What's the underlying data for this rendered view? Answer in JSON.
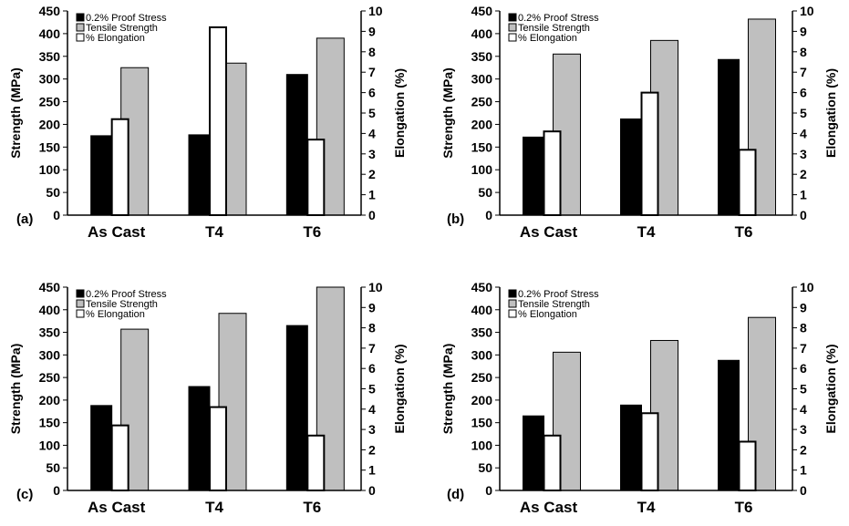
{
  "figure": {
    "panels": [
      {
        "label": "(a)"
      },
      {
        "label": "(b)"
      },
      {
        "label": "(c)"
      },
      {
        "label": "(d)"
      }
    ]
  },
  "chart_data": [
    {
      "type": "bar",
      "panel_label": "(a)",
      "categories": [
        "As Cast",
        "T4",
        "T6"
      ],
      "ylabel": "Strength (MPa)",
      "ylim": [
        0,
        450
      ],
      "y2label": "Elongation (%)",
      "y2lim": [
        0,
        10
      ],
      "yticks": [
        0,
        50,
        100,
        150,
        200,
        250,
        300,
        350,
        400,
        450
      ],
      "y2ticks": [
        0,
        1,
        2,
        3,
        4,
        5,
        6,
        7,
        8,
        9,
        10
      ],
      "legend_position": "top-left",
      "grid": false,
      "series": [
        {
          "name": "0.2% Proof Stress",
          "axis": "left",
          "color": "#000000",
          "values": [
            175,
            177,
            310
          ]
        },
        {
          "name": "Tensile Strength",
          "axis": "left",
          "color": "#bfbfbf",
          "values": [
            325,
            335,
            390
          ]
        },
        {
          "name": "% Elongation",
          "axis": "right",
          "color": "#ffffff",
          "values": [
            4.7,
            9.2,
            3.7
          ]
        }
      ]
    },
    {
      "type": "bar",
      "panel_label": "(b)",
      "categories": [
        "As Cast",
        "T4",
        "T6"
      ],
      "ylabel": "Strength (MPa)",
      "ylim": [
        0,
        450
      ],
      "y2label": "Elongation (%)",
      "y2lim": [
        0,
        10
      ],
      "yticks": [
        0,
        50,
        100,
        150,
        200,
        250,
        300,
        350,
        400,
        450
      ],
      "y2ticks": [
        0,
        1,
        2,
        3,
        4,
        5,
        6,
        7,
        8,
        9,
        10
      ],
      "legend_position": "top-left",
      "grid": false,
      "series": [
        {
          "name": "0.2% Proof Stress",
          "axis": "left",
          "color": "#000000",
          "values": [
            172,
            212,
            343
          ]
        },
        {
          "name": "Tensile Strength",
          "axis": "left",
          "color": "#bfbfbf",
          "values": [
            355,
            385,
            432
          ]
        },
        {
          "name": "% Elongation",
          "axis": "right",
          "color": "#ffffff",
          "values": [
            4.1,
            6.0,
            3.2
          ]
        }
      ]
    },
    {
      "type": "bar",
      "panel_label": "(c)",
      "categories": [
        "As Cast",
        "T4",
        "T6"
      ],
      "ylabel": "Strength (MPa)",
      "ylim": [
        0,
        450
      ],
      "y2label": "Elongation (%)",
      "y2lim": [
        0,
        10
      ],
      "yticks": [
        0,
        50,
        100,
        150,
        200,
        250,
        300,
        350,
        400,
        450
      ],
      "y2ticks": [
        0,
        1,
        2,
        3,
        4,
        5,
        6,
        7,
        8,
        9,
        10
      ],
      "legend_position": "top-left",
      "grid": false,
      "series": [
        {
          "name": "0.2% Proof Stress",
          "axis": "left",
          "color": "#000000",
          "values": [
            188,
            230,
            365
          ]
        },
        {
          "name": "Tensile Strength",
          "axis": "left",
          "color": "#bfbfbf",
          "values": [
            357,
            392,
            450
          ]
        },
        {
          "name": "% Elongation",
          "axis": "right",
          "color": "#ffffff",
          "values": [
            3.2,
            4.1,
            2.7
          ]
        }
      ]
    },
    {
      "type": "bar",
      "panel_label": "(d)",
      "categories": [
        "As Cast",
        "T4",
        "T6"
      ],
      "ylabel": "Strength (MPa)",
      "ylim": [
        0,
        450
      ],
      "y2label": "Elongation (%)",
      "y2lim": [
        0,
        10
      ],
      "yticks": [
        0,
        50,
        100,
        150,
        200,
        250,
        300,
        350,
        400,
        450
      ],
      "y2ticks": [
        0,
        1,
        2,
        3,
        4,
        5,
        6,
        7,
        8,
        9,
        10
      ],
      "legend_position": "top-left",
      "grid": false,
      "series": [
        {
          "name": "0.2% Proof Stress",
          "axis": "left",
          "color": "#000000",
          "values": [
            165,
            189,
            288
          ]
        },
        {
          "name": "Tensile Strength",
          "axis": "left",
          "color": "#bfbfbf",
          "values": [
            306,
            332,
            383
          ]
        },
        {
          "name": "% Elongation",
          "axis": "right",
          "color": "#ffffff",
          "values": [
            2.7,
            3.8,
            2.4
          ]
        }
      ]
    }
  ]
}
